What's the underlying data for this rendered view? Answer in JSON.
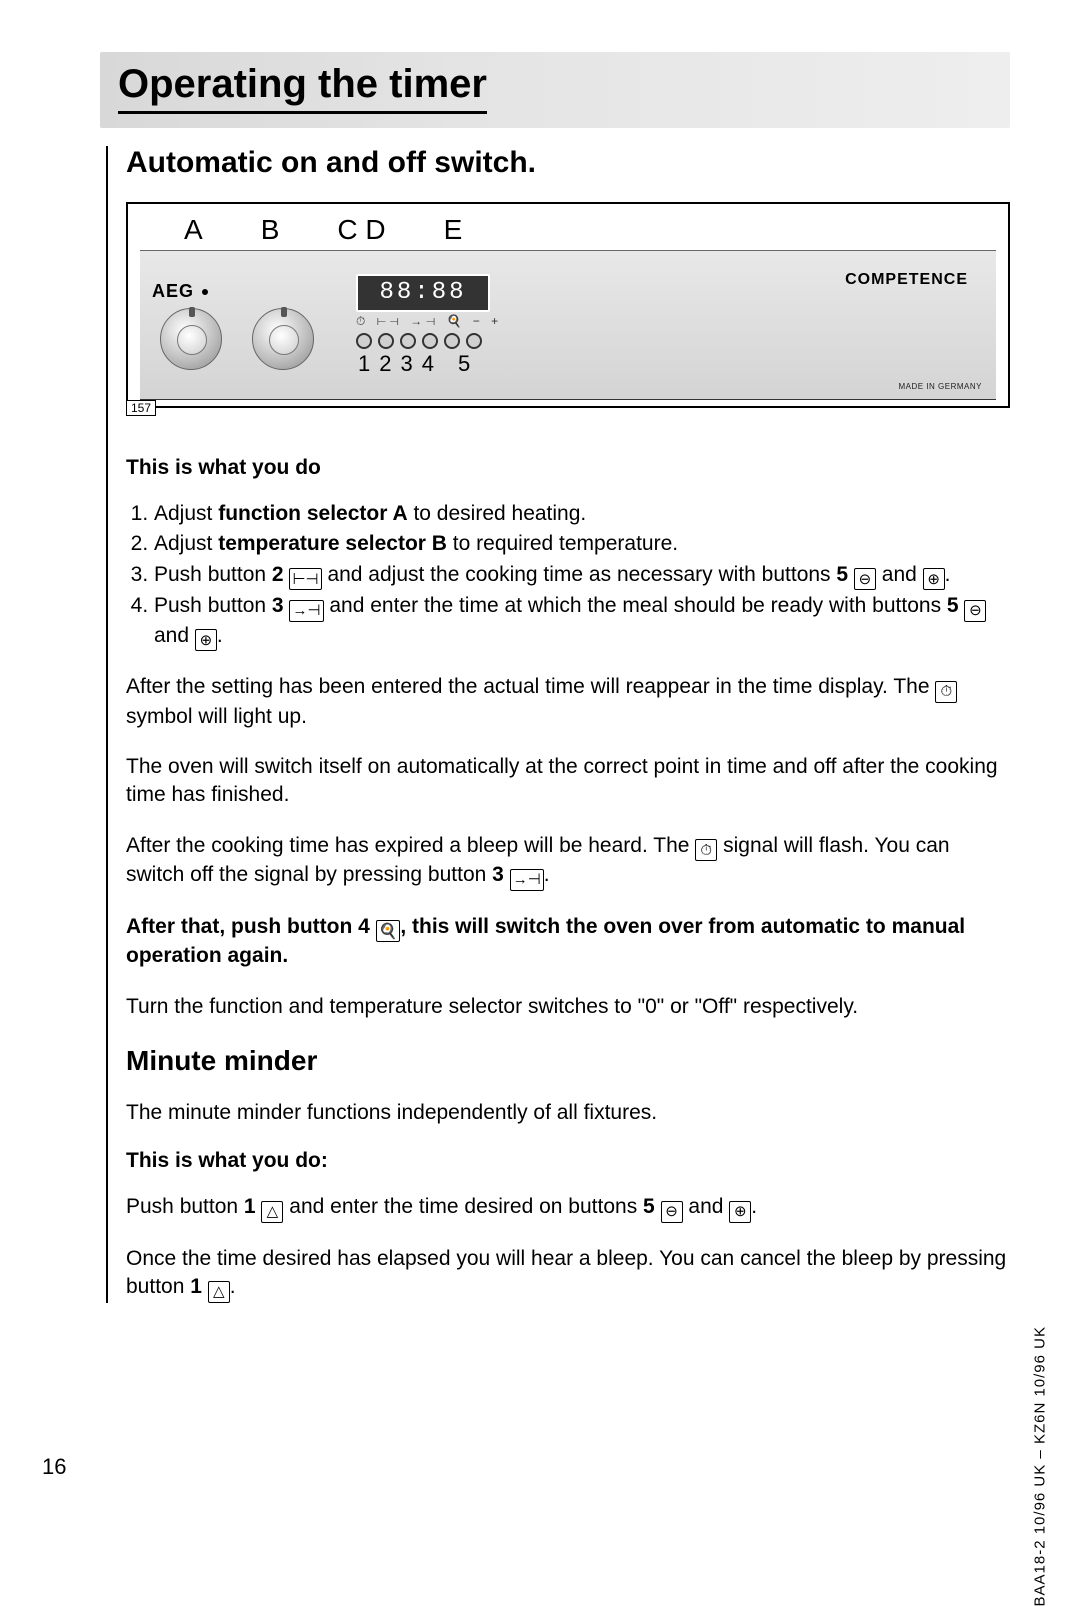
{
  "banner_title": "Operating the timer",
  "section1_title": "Automatic on and off switch.",
  "diagram": {
    "labels": [
      "A",
      "B",
      "C D",
      "E"
    ],
    "brand": "AEG",
    "lcd": "88:88",
    "symbol_row": "⏱ ⊢⊣ →⊣ 🍳 − +",
    "button_numbers": "1234 5",
    "competence": "COMPETENCE",
    "made": "MADE IN GERMANY",
    "tag": "157"
  },
  "sub1": "This is what you do",
  "steps": [
    {
      "pre": "Adjust ",
      "bold": "function selector A",
      "post": " to desired heating."
    },
    {
      "pre": "Adjust ",
      "bold": "temperature selector B",
      "post": " to required temperature."
    },
    {
      "raw": "step3"
    },
    {
      "raw": "step4"
    }
  ],
  "step3": {
    "t1": "Push button ",
    "b1": "2",
    "ic1": "⊢⊣",
    "t2": " and adjust the cooking time as necessary with buttons ",
    "b2": "5",
    "ic2": "⊖",
    "t3": " and ",
    "ic3": "⊕",
    "t4": "."
  },
  "step4": {
    "t1": "Push button ",
    "b1": "3",
    "ic1": "→⊣",
    "t2": " and enter the time at which the meal should be ready with buttons ",
    "b2": "5",
    "ic2": "⊖",
    "t3": " and ",
    "ic3": "⊕",
    "t4": "."
  },
  "p1": {
    "t1": "After the setting has been entered the actual time will reappear in the time display. The ",
    "ic": "⏱",
    "t2": " symbol will light up."
  },
  "p2": "The oven will switch itself on automatically at the correct point in time and off after the cooking time has finished.",
  "p3": {
    "t1": "After the cooking time has expired a bleep will be heard. The ",
    "ic1": "⏱",
    "t2": " signal will flash. You can switch off the signal by pressing button ",
    "b": "3",
    "ic2": "→⊣",
    "t3": "."
  },
  "p4_bold": {
    "t1": "After that, push button 4 ",
    "ic": "🍳",
    "t2": ", this will switch the oven over from automatic to manual operation again."
  },
  "p5": "Turn the function and temperature selector switches to \"0\" or \"Off\" respectively.",
  "section2_title": "Minute minder",
  "m1": "The minute minder functions independently of all fixtures.",
  "m_sub": "This is what you do:",
  "m2": {
    "t1": "Push button ",
    "b1": "1",
    "ic1": "△",
    "t2": " and enter the time desired on buttons ",
    "b2": "5",
    "ic2": "⊖",
    "t3": " and ",
    "ic3": "⊕",
    "t4": "."
  },
  "m3": {
    "t1": "Once the time desired has elapsed you will hear a bleep. You can cancel the bleep by pressing button ",
    "b": "1",
    "ic": "△",
    "t2": "."
  },
  "page_number": "16",
  "side_code": "BAA18-2  10/96   UK – KZ6N  10/96   UK"
}
